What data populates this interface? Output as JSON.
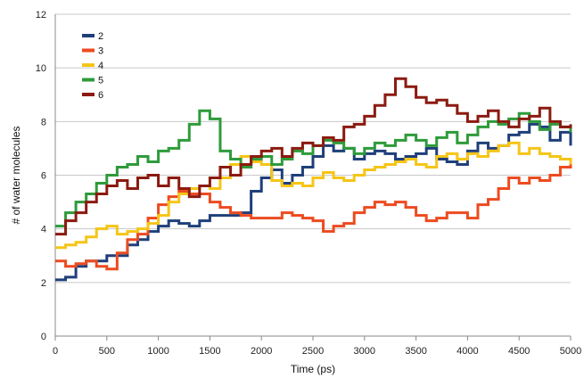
{
  "chart_data": {
    "type": "line",
    "title": "",
    "xlabel": "Time (ps)",
    "ylabel": "# of water molecules",
    "xlim": [
      0,
      5000
    ],
    "ylim": [
      0,
      12
    ],
    "xticks": [
      0,
      500,
      1000,
      1500,
      2000,
      2500,
      3000,
      3500,
      4000,
      4500,
      5000
    ],
    "yticks": [
      0,
      2,
      4,
      6,
      8,
      10,
      12
    ],
    "grid": "horizontal",
    "legend_position": "top-left",
    "series": [
      {
        "name": "2",
        "color": "#1f3f7a",
        "x": [
          0,
          100,
          200,
          300,
          400,
          500,
          600,
          700,
          800,
          900,
          1000,
          1100,
          1200,
          1300,
          1400,
          1500,
          1600,
          1700,
          1800,
          1900,
          2000,
          2100,
          2200,
          2300,
          2400,
          2500,
          2600,
          2700,
          2800,
          2900,
          3000,
          3100,
          3200,
          3300,
          3400,
          3500,
          3600,
          3700,
          3800,
          3900,
          4000,
          4100,
          4200,
          4300,
          4400,
          4500,
          4600,
          4700,
          4800,
          4900,
          5000
        ],
        "y": [
          2.1,
          2.2,
          2.6,
          2.8,
          2.8,
          3.0,
          3.0,
          3.4,
          3.6,
          3.9,
          4.1,
          4.3,
          4.2,
          4.1,
          4.3,
          4.5,
          4.5,
          4.5,
          4.6,
          5.4,
          5.9,
          6.2,
          5.7,
          6.0,
          6.3,
          6.7,
          7.1,
          6.9,
          7.0,
          6.6,
          6.8,
          6.9,
          6.8,
          6.6,
          6.7,
          6.8,
          7.0,
          6.6,
          6.5,
          6.4,
          6.9,
          7.2,
          7.0,
          7.1,
          7.5,
          7.6,
          7.9,
          7.8,
          7.3,
          7.6,
          7.1
        ]
      },
      {
        "name": "3",
        "color": "#ec4b20",
        "x": [
          0,
          100,
          200,
          300,
          400,
          500,
          600,
          700,
          800,
          900,
          1000,
          1100,
          1200,
          1300,
          1400,
          1500,
          1600,
          1700,
          1800,
          1900,
          2000,
          2100,
          2200,
          2300,
          2400,
          2500,
          2600,
          2700,
          2800,
          2900,
          3000,
          3100,
          3200,
          3300,
          3400,
          3500,
          3600,
          3700,
          3800,
          3900,
          4000,
          4100,
          4200,
          4300,
          4400,
          4500,
          4600,
          4700,
          4800,
          4900,
          5000
        ],
        "y": [
          2.8,
          2.6,
          2.7,
          2.8,
          2.6,
          2.5,
          3.1,
          3.6,
          3.8,
          4.4,
          4.9,
          5.2,
          5.4,
          5.3,
          5.3,
          5.0,
          4.8,
          4.6,
          4.5,
          4.4,
          4.4,
          4.4,
          4.6,
          4.5,
          4.4,
          4.3,
          3.9,
          4.1,
          4.2,
          4.6,
          4.8,
          5.0,
          4.9,
          5.0,
          4.8,
          4.5,
          4.3,
          4.4,
          4.6,
          4.6,
          4.4,
          4.9,
          5.1,
          5.5,
          5.9,
          5.7,
          5.9,
          5.8,
          6.0,
          6.3,
          6.6
        ]
      },
      {
        "name": "4",
        "color": "#f5c518",
        "x": [
          0,
          100,
          200,
          300,
          400,
          500,
          600,
          700,
          800,
          900,
          1000,
          1100,
          1200,
          1300,
          1400,
          1500,
          1600,
          1700,
          1800,
          1900,
          2000,
          2100,
          2200,
          2300,
          2400,
          2500,
          2600,
          2700,
          2800,
          2900,
          3000,
          3100,
          3200,
          3300,
          3400,
          3500,
          3600,
          3700,
          3800,
          3900,
          4000,
          4100,
          4200,
          4300,
          4400,
          4500,
          4600,
          4700,
          4800,
          4900,
          5000
        ],
        "y": [
          3.3,
          3.4,
          3.5,
          3.7,
          4.0,
          4.1,
          3.8,
          3.9,
          4.0,
          4.2,
          4.5,
          5.0,
          5.3,
          5.5,
          5.6,
          5.5,
          5.9,
          6.4,
          6.7,
          6.5,
          6.4,
          5.8,
          5.6,
          5.7,
          5.6,
          5.9,
          6.1,
          5.9,
          5.8,
          6.0,
          6.2,
          6.3,
          6.4,
          6.5,
          6.6,
          6.4,
          6.3,
          6.7,
          6.8,
          6.6,
          6.8,
          6.7,
          6.9,
          7.1,
          7.2,
          6.8,
          7.0,
          6.8,
          6.7,
          6.6,
          6.4
        ]
      },
      {
        "name": "5",
        "color": "#2e9b3a",
        "x": [
          0,
          100,
          200,
          300,
          400,
          500,
          600,
          700,
          800,
          900,
          1000,
          1100,
          1200,
          1300,
          1400,
          1500,
          1600,
          1700,
          1800,
          1900,
          2000,
          2100,
          2200,
          2300,
          2400,
          2500,
          2600,
          2700,
          2800,
          2900,
          3000,
          3100,
          3200,
          3300,
          3400,
          3500,
          3600,
          3700,
          3800,
          3900,
          4000,
          4100,
          4200,
          4300,
          4400,
          4500,
          4600,
          4700,
          4800,
          4900,
          5000
        ],
        "y": [
          4.1,
          4.6,
          5.0,
          5.3,
          5.7,
          6.0,
          6.3,
          6.4,
          6.7,
          6.5,
          6.9,
          7.0,
          7.3,
          7.9,
          8.4,
          8.1,
          6.9,
          6.6,
          6.3,
          6.6,
          6.7,
          6.4,
          6.6,
          6.9,
          6.8,
          7.1,
          7.3,
          7.2,
          7.0,
          6.8,
          7.0,
          7.2,
          7.1,
          7.3,
          7.5,
          7.3,
          7.1,
          7.4,
          7.6,
          7.2,
          7.5,
          7.8,
          8.0,
          7.9,
          8.1,
          8.3,
          8.0,
          7.7,
          7.9,
          7.8,
          7.6
        ]
      },
      {
        "name": "6",
        "color": "#8b1a10",
        "x": [
          0,
          100,
          200,
          300,
          400,
          500,
          600,
          700,
          800,
          900,
          1000,
          1100,
          1200,
          1300,
          1400,
          1500,
          1600,
          1700,
          1800,
          1900,
          2000,
          2100,
          2200,
          2300,
          2400,
          2500,
          2600,
          2700,
          2800,
          2900,
          3000,
          3100,
          3200,
          3300,
          3400,
          3500,
          3600,
          3700,
          3800,
          3900,
          4000,
          4100,
          4200,
          4300,
          4400,
          4500,
          4600,
          4700,
          4800,
          4900,
          5000
        ],
        "y": [
          3.8,
          4.3,
          4.6,
          5.0,
          5.3,
          5.6,
          5.8,
          5.5,
          5.9,
          6.0,
          5.6,
          5.9,
          5.5,
          5.2,
          5.6,
          5.9,
          6.3,
          6.0,
          6.4,
          6.7,
          6.9,
          7.0,
          6.7,
          7.0,
          7.2,
          7.1,
          7.4,
          7.3,
          7.8,
          7.9,
          8.2,
          8.6,
          9.0,
          9.6,
          9.3,
          8.9,
          8.7,
          8.8,
          8.6,
          8.3,
          8.0,
          8.2,
          8.4,
          8.0,
          7.8,
          8.1,
          8.2,
          8.5,
          8.0,
          7.8,
          7.9
        ]
      }
    ]
  }
}
